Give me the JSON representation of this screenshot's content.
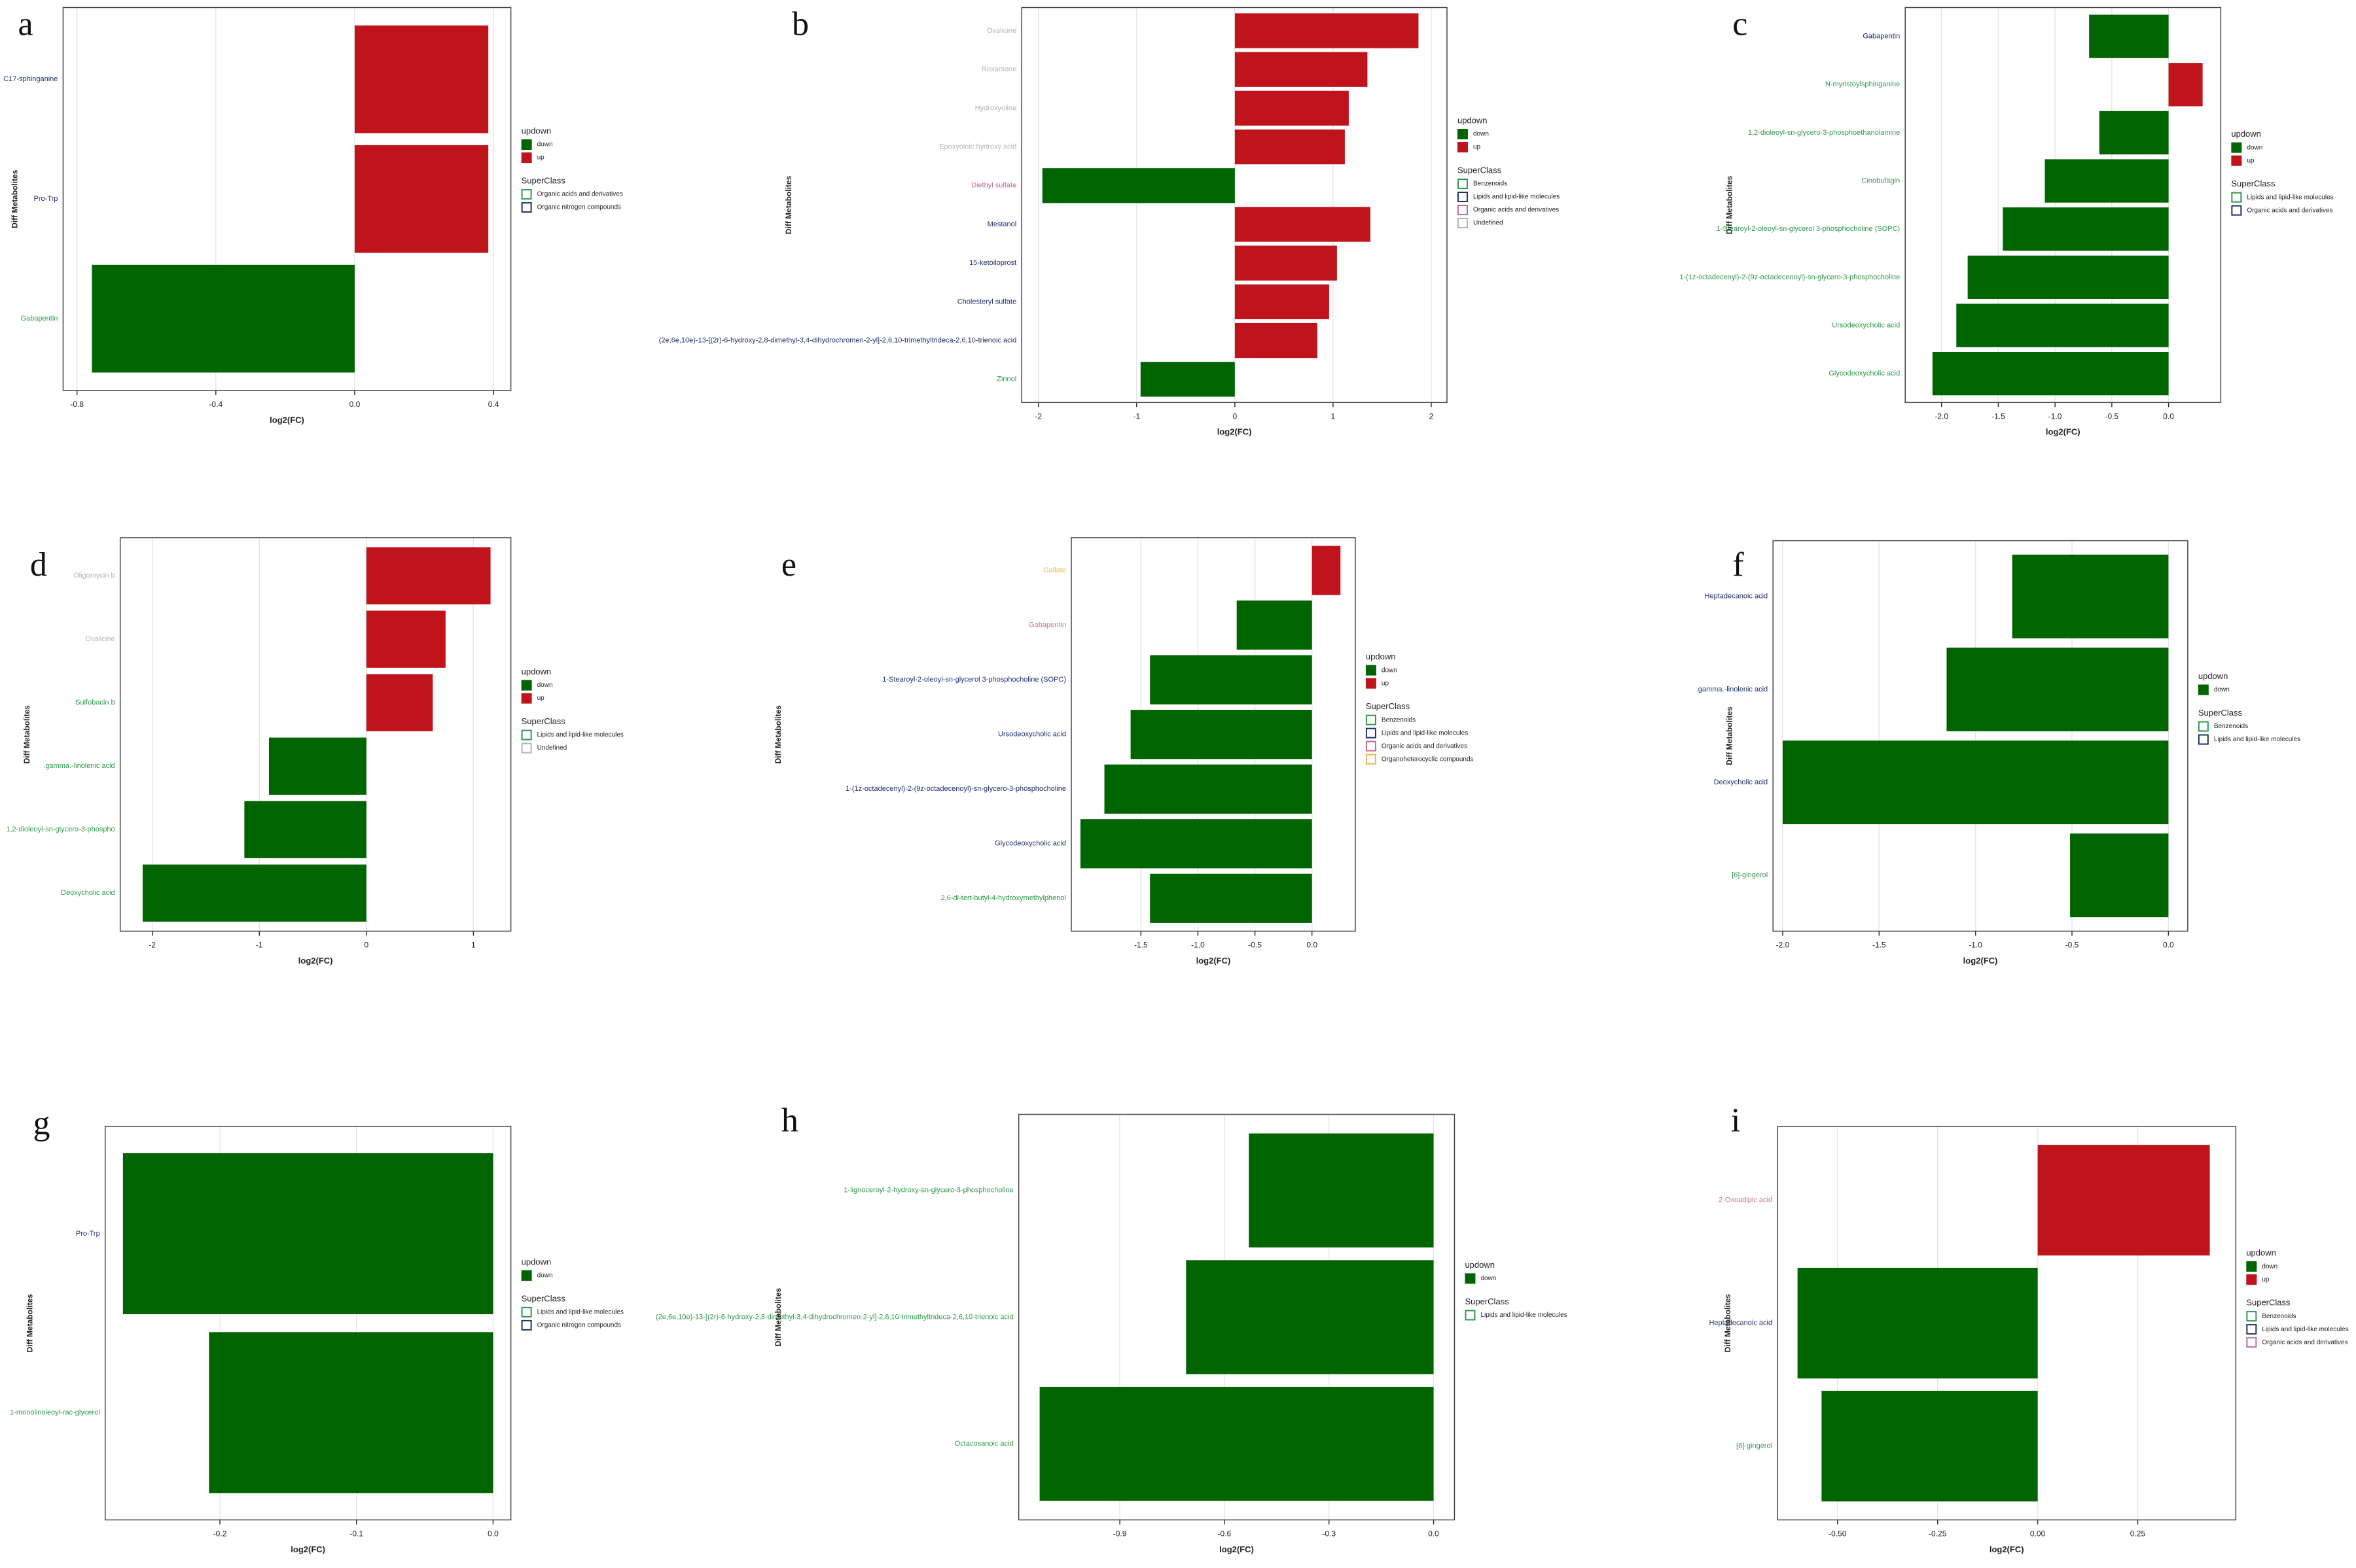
{
  "chart_data": [
    {
      "type": "bar",
      "orientation": "horizontal",
      "panel": "a",
      "categories": [
        "C17-sphinganine",
        "Pro-Trp",
        "Gabapentin"
      ],
      "label_colors": [
        "#1f2f6b",
        "#1f2f6b",
        "#2e9a4a"
      ],
      "values": [
        0.385,
        0.385,
        -0.757
      ],
      "xlim": [
        -0.84,
        0.45
      ],
      "xticks": [
        -0.8,
        -0.4,
        {
          "value": 0,
          "label": "0.0"
        },
        0.4
      ],
      "xlabel": "log2(FC)",
      "ylabel": "Diff Metabolites",
      "grid": true,
      "updown_title": "updown",
      "updown": [
        {
          "name": "down",
          "color": "#006400"
        },
        {
          "name": "up",
          "color": "#c0141c"
        }
      ],
      "superclass_title": "SuperClass",
      "superclass": [
        {
          "name": "Organic acids and derivatives",
          "color": "#2e9a4a"
        },
        {
          "name": "Organic nitrogen compounds",
          "color": "#1f2f6b"
        }
      ]
    },
    {
      "type": "bar",
      "orientation": "horizontal",
      "panel": "b",
      "categories": [
        "Ovalicine",
        "Roxarsone",
        "Hydroxyoline",
        "Epoxyoleic hydroxy acid",
        "Diethyl sulfate",
        "Mestanol",
        "15-ketoiloprost",
        "Cholesteryl sulfate",
        "(2e,6e,10e)-13-[(2r)-6-hydroxy-2,8-dimethyl-3,4-dihydrochromen-2-yl]-2,6,10-trimethyltrideca-2,6,10-trienoic acid",
        "Zinnol"
      ],
      "label_colors": [
        "#b5b5b5",
        "#b5b5b5",
        "#b5b5b5",
        "#b5b5b5",
        "#c0709a",
        "#1f2f6b",
        "#1f2f6b",
        "#1f2f6b",
        "#1f2f6b",
        "#2e9a4a"
      ],
      "values": [
        1.87,
        1.35,
        1.16,
        1.12,
        -1.96,
        1.38,
        1.04,
        0.96,
        0.84,
        -0.96
      ],
      "xlim": [
        -2.17,
        2.16
      ],
      "xticks": [
        -2,
        -1,
        0,
        1,
        2
      ],
      "xlabel": "log2(FC)",
      "ylabel": "Diff Metabolites",
      "grid": true,
      "updown_title": "updown",
      "updown": [
        {
          "name": "down",
          "color": "#006400"
        },
        {
          "name": "up",
          "color": "#c0141c"
        }
      ],
      "superclass_title": "SuperClass",
      "superclass": [
        {
          "name": "Benzenoids",
          "color": "#2e9a4a"
        },
        {
          "name": "Lipids and lipid-like molecules",
          "color": "#1f2f6b"
        },
        {
          "name": "Organic acids and derivatives",
          "color": "#c0709a"
        },
        {
          "name": "Undefined",
          "color": "#b5b5b5"
        }
      ]
    },
    {
      "type": "bar",
      "orientation": "horizontal",
      "panel": "c",
      "categories": [
        "Gabapentin",
        "N-myristoylsphinganine",
        "1,2-dioleoyl-sn-glycero-3-phosphoethanolamine",
        "Cinobufagin",
        "1-Stearoyl-2-oleoyl-sn-glycerol 3-phosphocholine (SOPC)",
        "1-(1z-octadecenyl)-2-(9z-octadecenoyl)-sn-glycero-3-phosphocholine",
        "Ursodeoxycholic acid",
        "Glycodeoxycholic acid"
      ],
      "label_colors": [
        "#1f2f6b",
        "#2e9a4a",
        "#2e9a4a",
        "#2e9a4a",
        "#2e9a4a",
        "#2e9a4a",
        "#2e9a4a",
        "#2e9a4a"
      ],
      "values": [
        -0.7,
        0.3,
        -0.61,
        -1.09,
        -1.46,
        -1.77,
        -1.87,
        -2.08
      ],
      "xlim": [
        -2.32,
        0.46
      ],
      "xticks": [
        {
          "value": -2,
          "label": "-2.0"
        },
        -1.5,
        {
          "value": -1,
          "label": "-1.0"
        },
        -0.5,
        {
          "value": 0,
          "label": "0.0"
        }
      ],
      "xlabel": "log2(FC)",
      "ylabel": "Diff Metabolites",
      "grid": true,
      "updown_title": "updown",
      "updown": [
        {
          "name": "down",
          "color": "#006400"
        },
        {
          "name": "up",
          "color": "#c0141c"
        }
      ],
      "superclass_title": "SuperClass",
      "superclass": [
        {
          "name": "Lipids and lipid-like molecules",
          "color": "#2e9a4a"
        },
        {
          "name": "Organic acids and derivatives",
          "color": "#1f2f6b"
        }
      ]
    },
    {
      "type": "bar",
      "orientation": "horizontal",
      "panel": "d",
      "categories": [
        "Oligomycin b",
        "Ovalicine",
        "Sulfobacin b",
        ".gamma.-linolenic acid",
        "1,2-dioleoyl-sn-glycero-3-phospho",
        "Deoxycholic acid"
      ],
      "label_colors": [
        "#b5b5b5",
        "#b5b5b5",
        "#2e9a4a",
        "#2e9a4a",
        "#2e9a4a",
        "#2e9a4a"
      ],
      "values": [
        1.16,
        0.74,
        0.62,
        -0.91,
        -1.14,
        -2.09
      ],
      "xlim": [
        -2.3,
        1.35
      ],
      "xticks": [
        -2,
        -1,
        0,
        1
      ],
      "xlabel": "log2(FC)",
      "ylabel": "Diff Metabolites",
      "grid": true,
      "updown_title": "updown",
      "updown": [
        {
          "name": "down",
          "color": "#006400"
        },
        {
          "name": "up",
          "color": "#c0141c"
        }
      ],
      "superclass_title": "SuperClass",
      "superclass": [
        {
          "name": "Lipids and lipid-like molecules",
          "color": "#2e9a4a"
        },
        {
          "name": "Undefined",
          "color": "#b5b5b5"
        }
      ]
    },
    {
      "type": "bar",
      "orientation": "horizontal",
      "panel": "e",
      "categories": [
        "Gallate",
        "Gabapentin",
        "1-Stearoyl-2-oleoyl-sn-glycerol 3-phosphocholine (SOPC)",
        "Ursodeoxycholic acid",
        "1-(1z-octadecenyl)-2-(9z-octadecenoyl)-sn-glycero-3-phosphocholine",
        "Glycodeoxycholic acid",
        "2,6-di-tert-butyl-4-hydroxymethylphenol"
      ],
      "label_colors": [
        "#e8b450",
        "#c0709a",
        "#1f2f6b",
        "#1f2f6b",
        "#1f2f6b",
        "#1f2f6b",
        "#2e9a4a"
      ],
      "values": [
        0.25,
        -0.66,
        -1.42,
        -1.59,
        -1.82,
        -2.03,
        -1.42
      ],
      "xlim": [
        -2.11,
        0.38
      ],
      "xticks": [
        -1.5,
        {
          "value": -1,
          "label": "-1.0"
        },
        -0.5,
        {
          "value": 0,
          "label": "0.0"
        }
      ],
      "xlabel": "log2(FC)",
      "ylabel": "Diff Metabolites",
      "grid": true,
      "updown_title": "updown",
      "updown": [
        {
          "name": "down",
          "color": "#006400"
        },
        {
          "name": "up",
          "color": "#c0141c"
        }
      ],
      "superclass_title": "SuperClass",
      "superclass": [
        {
          "name": "Benzenoids",
          "color": "#2e9a4a"
        },
        {
          "name": "Lipids and lipid-like molecules",
          "color": "#1f2f6b"
        },
        {
          "name": "Organic acids and derivatives",
          "color": "#c0709a"
        },
        {
          "name": "Organoheterocyclic compounds",
          "color": "#e8b450"
        }
      ]
    },
    {
      "type": "bar",
      "orientation": "horizontal",
      "panel": "f",
      "categories": [
        "Heptadecanoic acid",
        ".gamma.-linolenic acid",
        "Deoxycholic acid",
        "[6]-gingerol"
      ],
      "label_colors": [
        "#1f2f6b",
        "#1f2f6b",
        "#1f2f6b",
        "#2e9a4a"
      ],
      "values": [
        -0.81,
        -1.15,
        -2.0,
        -0.51
      ],
      "xlim": [
        -2.05,
        0.1
      ],
      "xticks": [
        {
          "value": -2,
          "label": "-2.0"
        },
        -1.5,
        {
          "value": -1,
          "label": "-1.0"
        },
        -0.5,
        {
          "value": 0,
          "label": "0.0"
        }
      ],
      "xlabel": "log2(FC)",
      "ylabel": "Diff Metabolites",
      "grid": true,
      "updown_title": "updown",
      "updown": [
        {
          "name": "down",
          "color": "#006400"
        }
      ],
      "superclass_title": "SuperClass",
      "superclass": [
        {
          "name": "Benzenoids",
          "color": "#2e9a4a"
        },
        {
          "name": "Lipids and lipid-like molecules",
          "color": "#1f2f6b"
        }
      ]
    },
    {
      "type": "bar",
      "orientation": "horizontal",
      "panel": "g",
      "categories": [
        "Pro-Trp",
        "1-monolinoleoyl-rac-glycerol"
      ],
      "label_colors": [
        "#1f2f6b",
        "#2e9a4a"
      ],
      "values": [
        -0.271,
        -0.208
      ],
      "xlim": [
        -0.284,
        0.013
      ],
      "xticks": [
        -0.2,
        -0.1,
        {
          "value": 0,
          "label": "0.0"
        }
      ],
      "xlabel": "log2(FC)",
      "ylabel": "Diff Metabolites",
      "grid": true,
      "updown_title": "updown",
      "updown": [
        {
          "name": "down",
          "color": "#006400"
        }
      ],
      "superclass_title": "SuperClass",
      "superclass": [
        {
          "name": "Lipids and lipid-like molecules",
          "color": "#2e9a4a"
        },
        {
          "name": "Organic nitrogen compounds",
          "color": "#1f2f6b"
        }
      ]
    },
    {
      "type": "bar",
      "orientation": "horizontal",
      "panel": "h",
      "categories": [
        "1-lignoceroyl-2-hydroxy-sn-glycero-3-phosphocholine",
        "(2e,6e,10e)-13-[(2r)-6-hydroxy-2,8-dimethyl-3,4-dihydrochromen-2-yl]-2,6,10-trimethyltrideca-2,6,10-trienoic acid",
        "Octacosanoic acid"
      ],
      "label_colors": [
        "#2e9a4a",
        "#2e9a4a",
        "#2e9a4a"
      ],
      "values": [
        -0.53,
        -0.71,
        -1.13
      ],
      "xlim": [
        -1.19,
        0.06
      ],
      "xticks": [
        -0.9,
        -0.6,
        -0.3,
        {
          "value": 0,
          "label": "0.0"
        }
      ],
      "xlabel": "log2(FC)",
      "ylabel": "Diff Metabolites",
      "grid": true,
      "updown_title": "updown",
      "updown": [
        {
          "name": "down",
          "color": "#006400"
        }
      ],
      "superclass_title": "SuperClass",
      "superclass": [
        {
          "name": "Lipids and lipid-like molecules",
          "color": "#2e9a4a"
        }
      ]
    },
    {
      "type": "bar",
      "orientation": "horizontal",
      "panel": "i",
      "categories": [
        "2-Oxoadipic acid",
        "Heptadecanoic acid",
        "[6]-gingerol"
      ],
      "label_colors": [
        "#c0709a",
        "#1f2f6b",
        "#2e9a4a"
      ],
      "values": [
        0.43,
        -0.6,
        -0.54
      ],
      "xlim": [
        -0.65,
        0.495
      ],
      "xticks": [
        {
          "value": -0.5,
          "label": "-0.50"
        },
        -0.25,
        {
          "value": 0,
          "label": "0.00"
        },
        0.25
      ],
      "xlabel": "log2(FC)",
      "ylabel": "Diff Metabolites",
      "grid": true,
      "updown_title": "updown",
      "updown": [
        {
          "name": "down",
          "color": "#006400"
        },
        {
          "name": "up",
          "color": "#c0141c"
        }
      ],
      "superclass_title": "SuperClass",
      "superclass": [
        {
          "name": "Benzenoids",
          "color": "#2e9a4a"
        },
        {
          "name": "Lipids and lipid-like molecules",
          "color": "#1f2f6b"
        },
        {
          "name": "Organic acids and derivatives",
          "color": "#c0709a"
        }
      ]
    }
  ]
}
